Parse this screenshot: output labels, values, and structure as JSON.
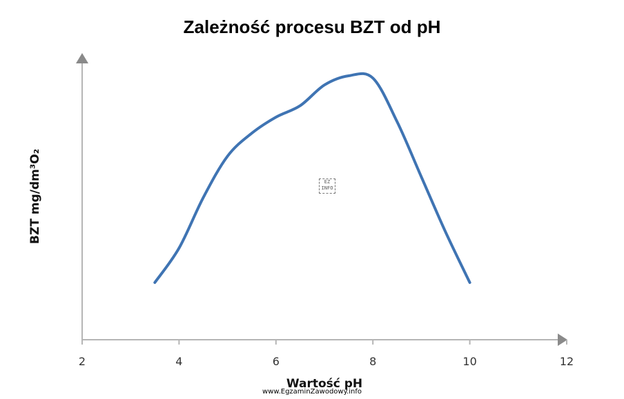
{
  "chart_data": {
    "type": "line",
    "title": "Zależność procesu BZT od pH",
    "xlabel": "Wartość pH",
    "ylabel": "BZT mg/dm³O₂",
    "xlim": [
      2,
      12
    ],
    "x_ticks": [
      2,
      4,
      6,
      8,
      10,
      12
    ],
    "y_ticks_labeled": false,
    "grid": false,
    "series": [
      {
        "color": "#3f74b3",
        "points": [
          [
            3.5,
            0.1
          ],
          [
            4.0,
            0.25
          ],
          [
            4.5,
            0.47
          ],
          [
            5.0,
            0.65
          ],
          [
            5.5,
            0.75
          ],
          [
            6.0,
            0.82
          ],
          [
            6.5,
            0.87
          ],
          [
            7.0,
            0.96
          ],
          [
            7.5,
            1.0
          ],
          [
            8.0,
            0.99
          ],
          [
            8.5,
            0.8
          ],
          [
            9.0,
            0.56
          ],
          [
            9.5,
            0.32
          ],
          [
            10.0,
            0.1
          ]
        ]
      }
    ]
  },
  "logo_text": "EZ INFO",
  "watermark": "www.EgzaminZawodowy.info"
}
